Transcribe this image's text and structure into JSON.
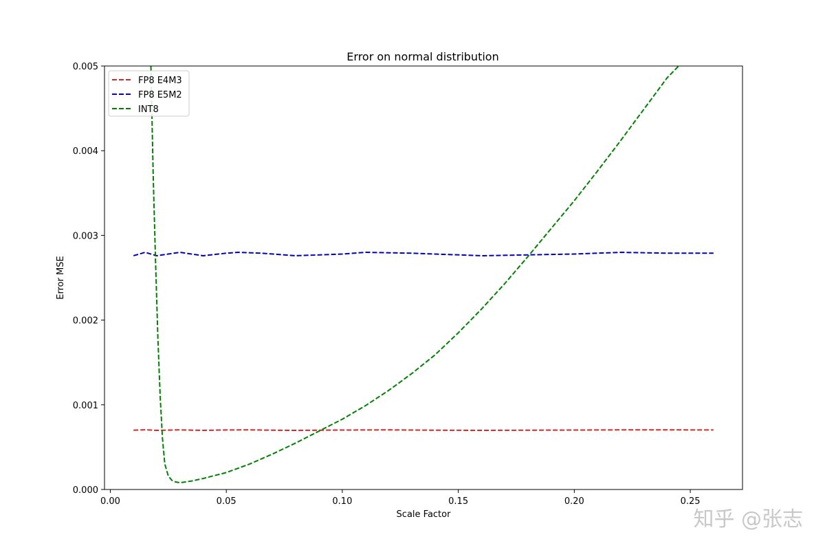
{
  "chart_data": {
    "type": "line",
    "title": "Error on normal distribution",
    "xlabel": "Scale Factor",
    "ylabel": "Error MSE",
    "xlim": [
      -0.0025,
      0.2725
    ],
    "ylim": [
      0,
      0.005
    ],
    "x_ticks": [
      0.0,
      0.05,
      0.1,
      0.15,
      0.2,
      0.25
    ],
    "x_tick_labels": [
      "0.00",
      "0.05",
      "0.10",
      "0.15",
      "0.20",
      "0.25"
    ],
    "y_ticks": [
      0,
      0.001,
      0.002,
      0.003,
      0.004,
      0.005
    ],
    "y_tick_labels": [
      "0.000",
      "0.001",
      "0.002",
      "0.003",
      "0.004",
      "0.005"
    ],
    "grid": false,
    "legend_position": "upper-left",
    "series": [
      {
        "name": "FP8 E4M3",
        "color": "#d62728",
        "dash": "dashed",
        "x": [
          0.01,
          0.015,
          0.02,
          0.03,
          0.04,
          0.05,
          0.06,
          0.07,
          0.08,
          0.09,
          0.1,
          0.12,
          0.14,
          0.16,
          0.18,
          0.2,
          0.22,
          0.24,
          0.26
        ],
        "y": [
          0.0007,
          0.000705,
          0.000698,
          0.000704,
          0.000698,
          0.000703,
          0.000704,
          0.0007,
          0.000698,
          0.0007,
          0.000702,
          0.000704,
          0.0007,
          0.000698,
          0.0007,
          0.000702,
          0.000704,
          0.000704,
          0.000703
        ]
      },
      {
        "name": "FP8 E5M2",
        "color": "#0000b4",
        "dash": "dashed",
        "x": [
          0.01,
          0.015,
          0.02,
          0.025,
          0.03,
          0.04,
          0.05,
          0.055,
          0.065,
          0.08,
          0.1,
          0.11,
          0.13,
          0.16,
          0.18,
          0.2,
          0.22,
          0.24,
          0.26
        ],
        "y": [
          0.00276,
          0.0028,
          0.00276,
          0.00278,
          0.0028,
          0.00276,
          0.00279,
          0.0028,
          0.00279,
          0.00276,
          0.00278,
          0.0028,
          0.00279,
          0.00276,
          0.00277,
          0.00278,
          0.0028,
          0.00279,
          0.00279
        ]
      },
      {
        "name": "INT8",
        "color": "#008000",
        "dash": "dashed",
        "x": [
          0.0175,
          0.0185,
          0.0195,
          0.0205,
          0.0215,
          0.0225,
          0.0235,
          0.025,
          0.0265,
          0.028,
          0.03,
          0.035,
          0.04,
          0.05,
          0.06,
          0.07,
          0.08,
          0.09,
          0.1,
          0.11,
          0.12,
          0.13,
          0.14,
          0.15,
          0.16,
          0.17,
          0.18,
          0.19,
          0.2,
          0.21,
          0.22,
          0.23,
          0.24,
          0.245
        ],
        "y": [
          0.005,
          0.0037,
          0.0027,
          0.0018,
          0.0011,
          0.0006,
          0.0003,
          0.00016,
          0.00011,
          9e-05,
          8e-05,
          0.0001,
          0.00013,
          0.0002,
          0.0003,
          0.00042,
          0.00055,
          0.00069,
          0.00083,
          0.00099,
          0.00117,
          0.00137,
          0.00159,
          0.00185,
          0.00213,
          0.00243,
          0.00275,
          0.00308,
          0.00341,
          0.00376,
          0.00412,
          0.00449,
          0.00486,
          0.005
        ]
      }
    ]
  },
  "watermark": "知乎 @张志"
}
